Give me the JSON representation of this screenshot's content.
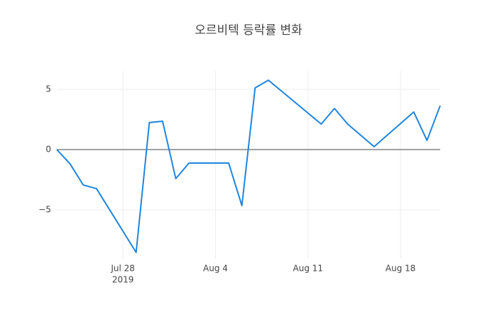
{
  "chart_data": {
    "type": "line",
    "title": "오르비텍 등락률 변화",
    "x": [
      "2019-07-23",
      "2019-07-24",
      "2019-07-25",
      "2019-07-26",
      "2019-07-29",
      "2019-07-30",
      "2019-07-31",
      "2019-08-01",
      "2019-08-02",
      "2019-08-05",
      "2019-08-06",
      "2019-08-07",
      "2019-08-08",
      "2019-08-12",
      "2019-08-13",
      "2019-08-14",
      "2019-08-16",
      "2019-08-19",
      "2019-08-20",
      "2019-08-21"
    ],
    "series": [
      {
        "color": "#1f85de",
        "values": [
          0,
          -1.18,
          -2.94,
          -3.24,
          -8.53,
          2.24,
          2.35,
          -2.41,
          -1.12,
          -1.12,
          -4.65,
          5.12,
          5.76,
          2.12,
          3.41,
          2.12,
          0.24,
          3.12,
          0.76,
          3.65
        ]
      }
    ],
    "xlim": [
      "2019-07-23",
      "2019-08-21"
    ],
    "xticks": [
      {
        "value": "2019-07-28",
        "label": "Jul 28",
        "sublabel": "2019"
      },
      {
        "value": "2019-08-04",
        "label": "Aug 4"
      },
      {
        "value": "2019-08-11",
        "label": "Aug 11"
      },
      {
        "value": "2019-08-18",
        "label": "Aug 18"
      }
    ],
    "ylim": [
      -9.06,
      6.53
    ],
    "yticks": [
      {
        "value": -5,
        "label": "−5"
      },
      0,
      5
    ],
    "grid": true,
    "zeroline": true
  }
}
